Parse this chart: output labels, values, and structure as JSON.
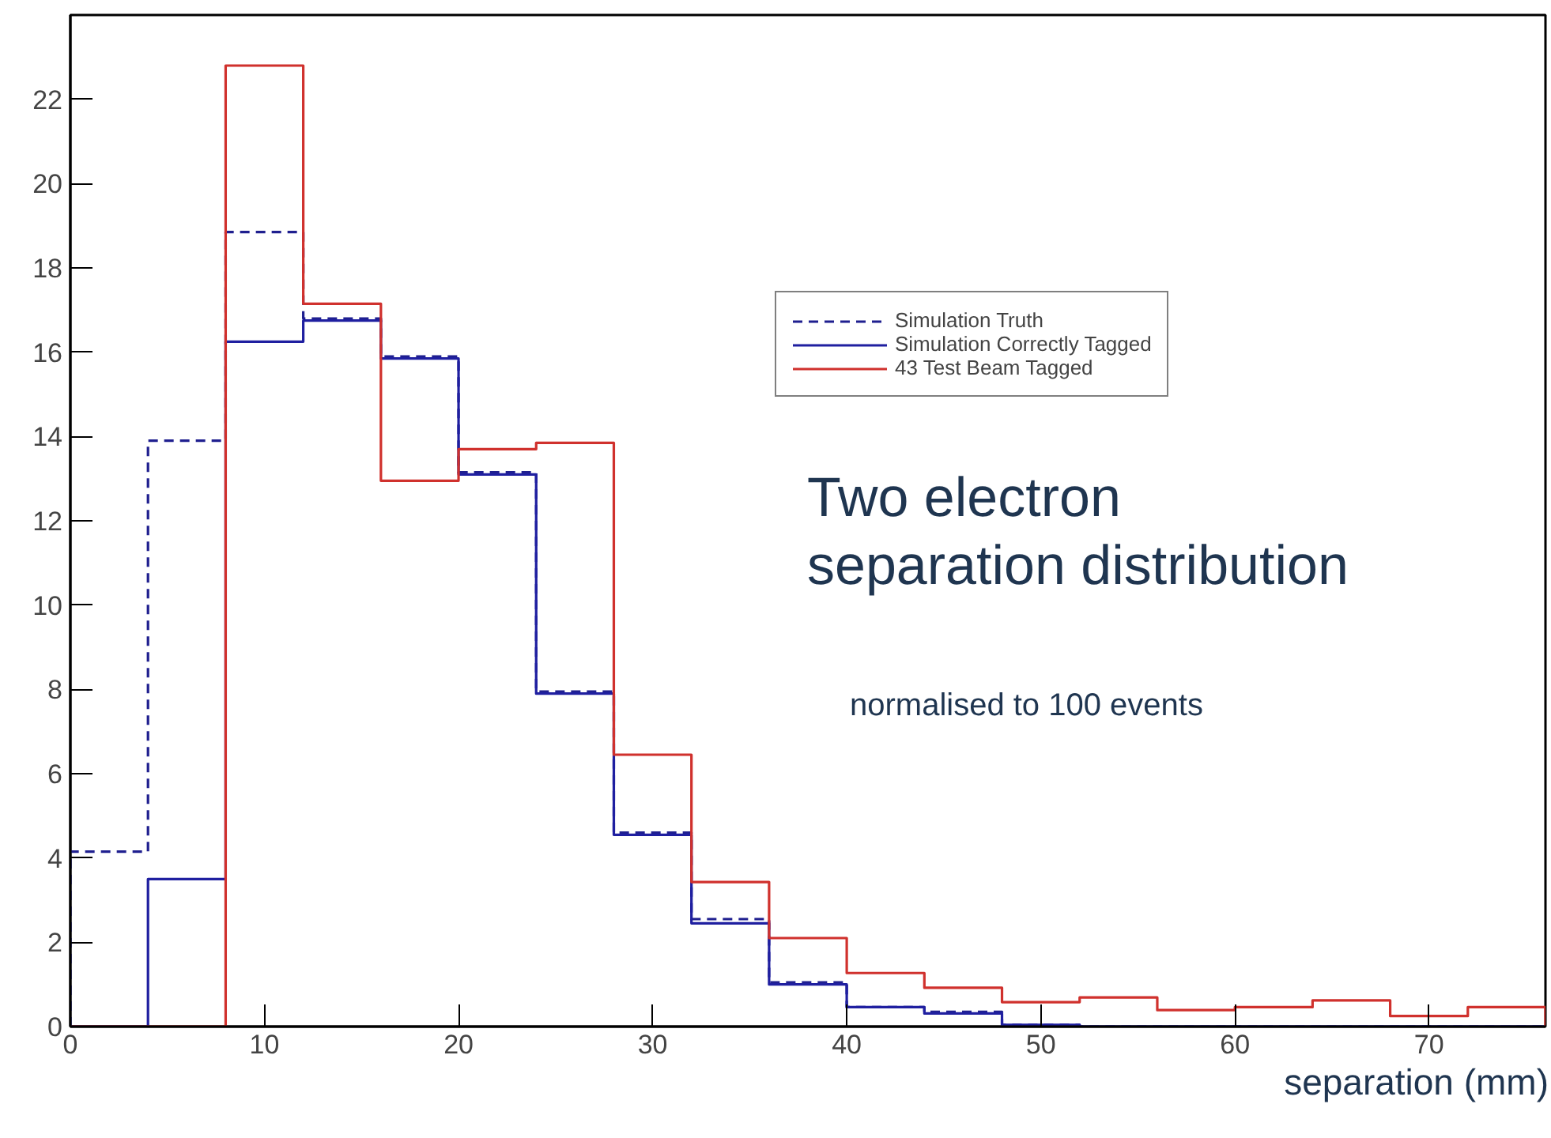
{
  "chart_data": {
    "type": "histogram",
    "title": "Two electron\nseparation distribution",
    "subtitle": "normalised to 100 events",
    "xlabel": "separation (mm)",
    "bins": [
      0,
      4,
      8,
      12,
      16,
      20,
      24,
      28,
      32,
      36,
      40,
      44,
      48,
      52,
      56,
      60,
      64,
      68,
      72,
      76
    ],
    "series": [
      {
        "name": "Simulation Truth",
        "color": "#1f1f8f",
        "line_style": "dashed",
        "values": [
          4.15,
          13.9,
          18.85,
          16.8,
          15.9,
          13.15,
          7.95,
          4.6,
          2.55,
          1.05,
          0.46,
          0.35,
          0.04,
          0,
          0,
          0,
          0,
          0,
          0
        ]
      },
      {
        "name": "Simulation Correctly Tagged",
        "color": "#1f1fa0",
        "line_style": "solid",
        "values": [
          0,
          3.5,
          16.25,
          16.75,
          15.85,
          13.1,
          7.9,
          4.55,
          2.45,
          1.0,
          0.46,
          0.31,
          0.04,
          0,
          0,
          0,
          0,
          0,
          0
        ]
      },
      {
        "name": "43 Test Beam Tagged",
        "color": "#d0312d",
        "line_style": "solid",
        "values": [
          0,
          0,
          22.8,
          17.15,
          12.95,
          13.7,
          13.85,
          6.45,
          3.43,
          2.1,
          1.27,
          0.92,
          0.58,
          0.69,
          0.39,
          0.46,
          0.62,
          0.25,
          0.46
        ]
      }
    ],
    "xlim": [
      0,
      76
    ],
    "ylim": [
      0,
      24
    ],
    "xticks": [
      0,
      10,
      20,
      30,
      40,
      50,
      60,
      70
    ],
    "yticks": [
      0,
      2,
      4,
      6,
      8,
      10,
      12,
      14,
      16,
      18,
      20,
      22
    ],
    "grid": false,
    "legend": "top right"
  }
}
